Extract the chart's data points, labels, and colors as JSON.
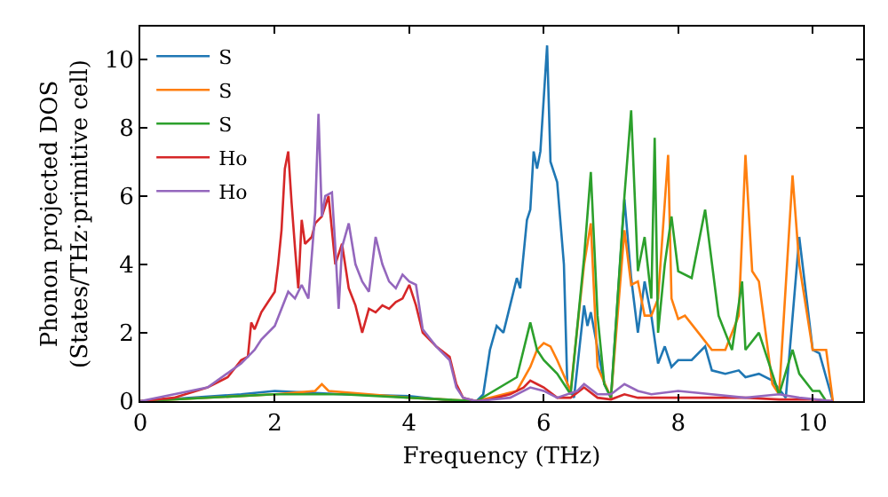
{
  "chart_data": {
    "type": "line",
    "xlabel": "Frequency (THz)",
    "ylabel": "Phonon projected DOS\n(States/THz·primitive cell)",
    "xlim": [
      0,
      10.75
    ],
    "ylim": [
      0,
      10.95
    ],
    "xticks": [
      0,
      2,
      4,
      6,
      8,
      10
    ],
    "yticks": [
      0,
      2,
      4,
      6,
      8,
      10
    ],
    "grid": false,
    "legend": "top left",
    "marker": "none",
    "line_style": "solid",
    "series": [
      {
        "name": "S",
        "color": "#1f77b4",
        "x": [
          0,
          1.5,
          2,
          3,
          4,
          4.7,
          5,
          5.1,
          5.2,
          5.3,
          5.4,
          5.5,
          5.6,
          5.65,
          5.75,
          5.8,
          5.85,
          5.9,
          5.95,
          6.05,
          6.1,
          6.2,
          6.3,
          6.35,
          6.45,
          6.6,
          6.65,
          6.7,
          6.9,
          7,
          7.2,
          7.3,
          7.4,
          7.5,
          7.6,
          7.7,
          7.8,
          7.9,
          8,
          8.2,
          8.4,
          8.5,
          8.7,
          8.9,
          9,
          9.2,
          9.4,
          9.6,
          9.8,
          10,
          10.1,
          10.3
        ],
        "values": [
          0,
          0.2,
          0.3,
          0.2,
          0.15,
          0,
          0,
          0.2,
          1.5,
          2.2,
          2,
          2.8,
          3.6,
          3.3,
          5.3,
          5.6,
          7.3,
          6.8,
          7.3,
          10.4,
          7,
          6.4,
          4,
          0.5,
          0.1,
          2.8,
          2.2,
          2.6,
          0.5,
          0.1,
          5.9,
          3.6,
          2,
          3.5,
          2.5,
          1.1,
          1.6,
          1,
          1.2,
          1.2,
          1.6,
          0.9,
          0.8,
          0.9,
          0.7,
          0.8,
          0.6,
          0.1,
          4.8,
          1.5,
          1.4,
          0
        ]
      },
      {
        "name": "S",
        "color": "#ff7f0e",
        "x": [
          0,
          2,
          2.6,
          2.7,
          2.8,
          4,
          5,
          5.6,
          5.8,
          5.9,
          6,
          6.1,
          6.2,
          6.4,
          6.6,
          6.7,
          6.8,
          7,
          7.2,
          7.3,
          7.4,
          7.5,
          7.6,
          7.7,
          7.85,
          7.9,
          8,
          8.1,
          8.3,
          8.5,
          8.7,
          8.9,
          9,
          9.1,
          9.2,
          9.4,
          9.5,
          9.7,
          9.8,
          10,
          10.2,
          10.3
        ],
        "values": [
          0,
          0.2,
          0.3,
          0.5,
          0.3,
          0.1,
          0,
          0.3,
          1,
          1.5,
          1.7,
          1.6,
          1.2,
          0.3,
          4,
          5.2,
          1,
          0.1,
          5,
          3.4,
          3.5,
          2.5,
          2.5,
          3,
          7.2,
          3,
          2.4,
          2.5,
          2,
          1.5,
          1.5,
          2.5,
          7.2,
          3.8,
          3.5,
          0.5,
          0.2,
          6.6,
          4,
          1.5,
          1.5,
          0
        ]
      },
      {
        "name": "S",
        "color": "#2ca02c",
        "x": [
          0,
          2,
          3,
          4,
          5,
          5.6,
          5.8,
          5.9,
          6,
          6.2,
          6.4,
          6.6,
          6.7,
          6.8,
          6.9,
          7,
          7.2,
          7.3,
          7.4,
          7.5,
          7.6,
          7.65,
          7.7,
          7.8,
          7.9,
          8,
          8.2,
          8.4,
          8.6,
          8.8,
          8.95,
          9,
          9.2,
          9.4,
          9.5,
          9.7,
          9.8,
          10,
          10.1,
          10.2
        ],
        "values": [
          0,
          0.2,
          0.2,
          0.1,
          0,
          0.7,
          2.3,
          1.5,
          1.2,
          0.8,
          0.2,
          4.2,
          6.7,
          2.5,
          0.5,
          0.1,
          6,
          8.5,
          3.8,
          4.8,
          3,
          7.7,
          2,
          4,
          5.4,
          3.8,
          3.6,
          5.6,
          2.5,
          1.5,
          3.5,
          1.5,
          2,
          0.8,
          0.2,
          1.5,
          0.8,
          0.3,
          0.3,
          0
        ]
      },
      {
        "name": "Ho",
        "color": "#d62728",
        "x": [
          0,
          0.5,
          1,
          1.3,
          1.5,
          1.6,
          1.65,
          1.7,
          1.8,
          1.9,
          2,
          2.05,
          2.1,
          2.15,
          2.2,
          2.25,
          2.3,
          2.35,
          2.4,
          2.45,
          2.55,
          2.6,
          2.7,
          2.8,
          2.85,
          2.9,
          3,
          3.1,
          3.2,
          3.3,
          3.4,
          3.5,
          3.6,
          3.7,
          3.8,
          3.9,
          4,
          4.1,
          4.2,
          4.4,
          4.6,
          4.7,
          4.8,
          5,
          5.2,
          5.5,
          5.7,
          5.8,
          5.9,
          6,
          6.2,
          6.4,
          6.6,
          6.8,
          7,
          7.2,
          7.4,
          8,
          9,
          9.5,
          10,
          10.3
        ],
        "values": [
          0,
          0.1,
          0.4,
          0.7,
          1.2,
          1.3,
          2.3,
          2.1,
          2.6,
          2.9,
          3.2,
          4,
          5,
          6.8,
          7.3,
          5.8,
          4.5,
          3.3,
          5.3,
          4.6,
          4.8,
          5.2,
          5.4,
          6,
          5,
          4,
          4.6,
          3.3,
          2.8,
          2,
          2.7,
          2.6,
          2.8,
          2.7,
          2.9,
          3,
          3.4,
          2.8,
          2,
          1.6,
          1.3,
          0.5,
          0.1,
          0,
          0.05,
          0.2,
          0.4,
          0.6,
          0.5,
          0.4,
          0.1,
          0.1,
          0.4,
          0.1,
          0.05,
          0.2,
          0.1,
          0.1,
          0.1,
          0.05,
          0.05,
          0
        ]
      },
      {
        "name": "Ho",
        "color": "#9467bd",
        "x": [
          0,
          1,
          1.5,
          1.7,
          1.8,
          2,
          2.2,
          2.3,
          2.4,
          2.5,
          2.6,
          2.65,
          2.7,
          2.75,
          2.85,
          2.9,
          2.95,
          3,
          3.1,
          3.2,
          3.3,
          3.4,
          3.5,
          3.6,
          3.7,
          3.8,
          3.9,
          4,
          4.1,
          4.2,
          4.4,
          4.6,
          4.7,
          4.8,
          5,
          5.5,
          5.8,
          6,
          6.2,
          6.5,
          6.6,
          6.8,
          7,
          7.2,
          7.4,
          7.6,
          8,
          8.5,
          9,
          9.5,
          9.8,
          10.3
        ],
        "values": [
          0,
          0.4,
          1.1,
          1.5,
          1.8,
          2.2,
          3.2,
          3,
          3.4,
          3,
          5.5,
          8.4,
          5.4,
          6,
          6.1,
          4.5,
          2.7,
          4.5,
          5.2,
          4,
          3.5,
          3.2,
          4.8,
          4,
          3.5,
          3.3,
          3.7,
          3.5,
          3.4,
          2.1,
          1.6,
          1.2,
          0.4,
          0.1,
          0,
          0.1,
          0.4,
          0.3,
          0.1,
          0.3,
          0.5,
          0.2,
          0.2,
          0.5,
          0.3,
          0.2,
          0.3,
          0.2,
          0.1,
          0.2,
          0.1,
          0
        ]
      }
    ]
  }
}
